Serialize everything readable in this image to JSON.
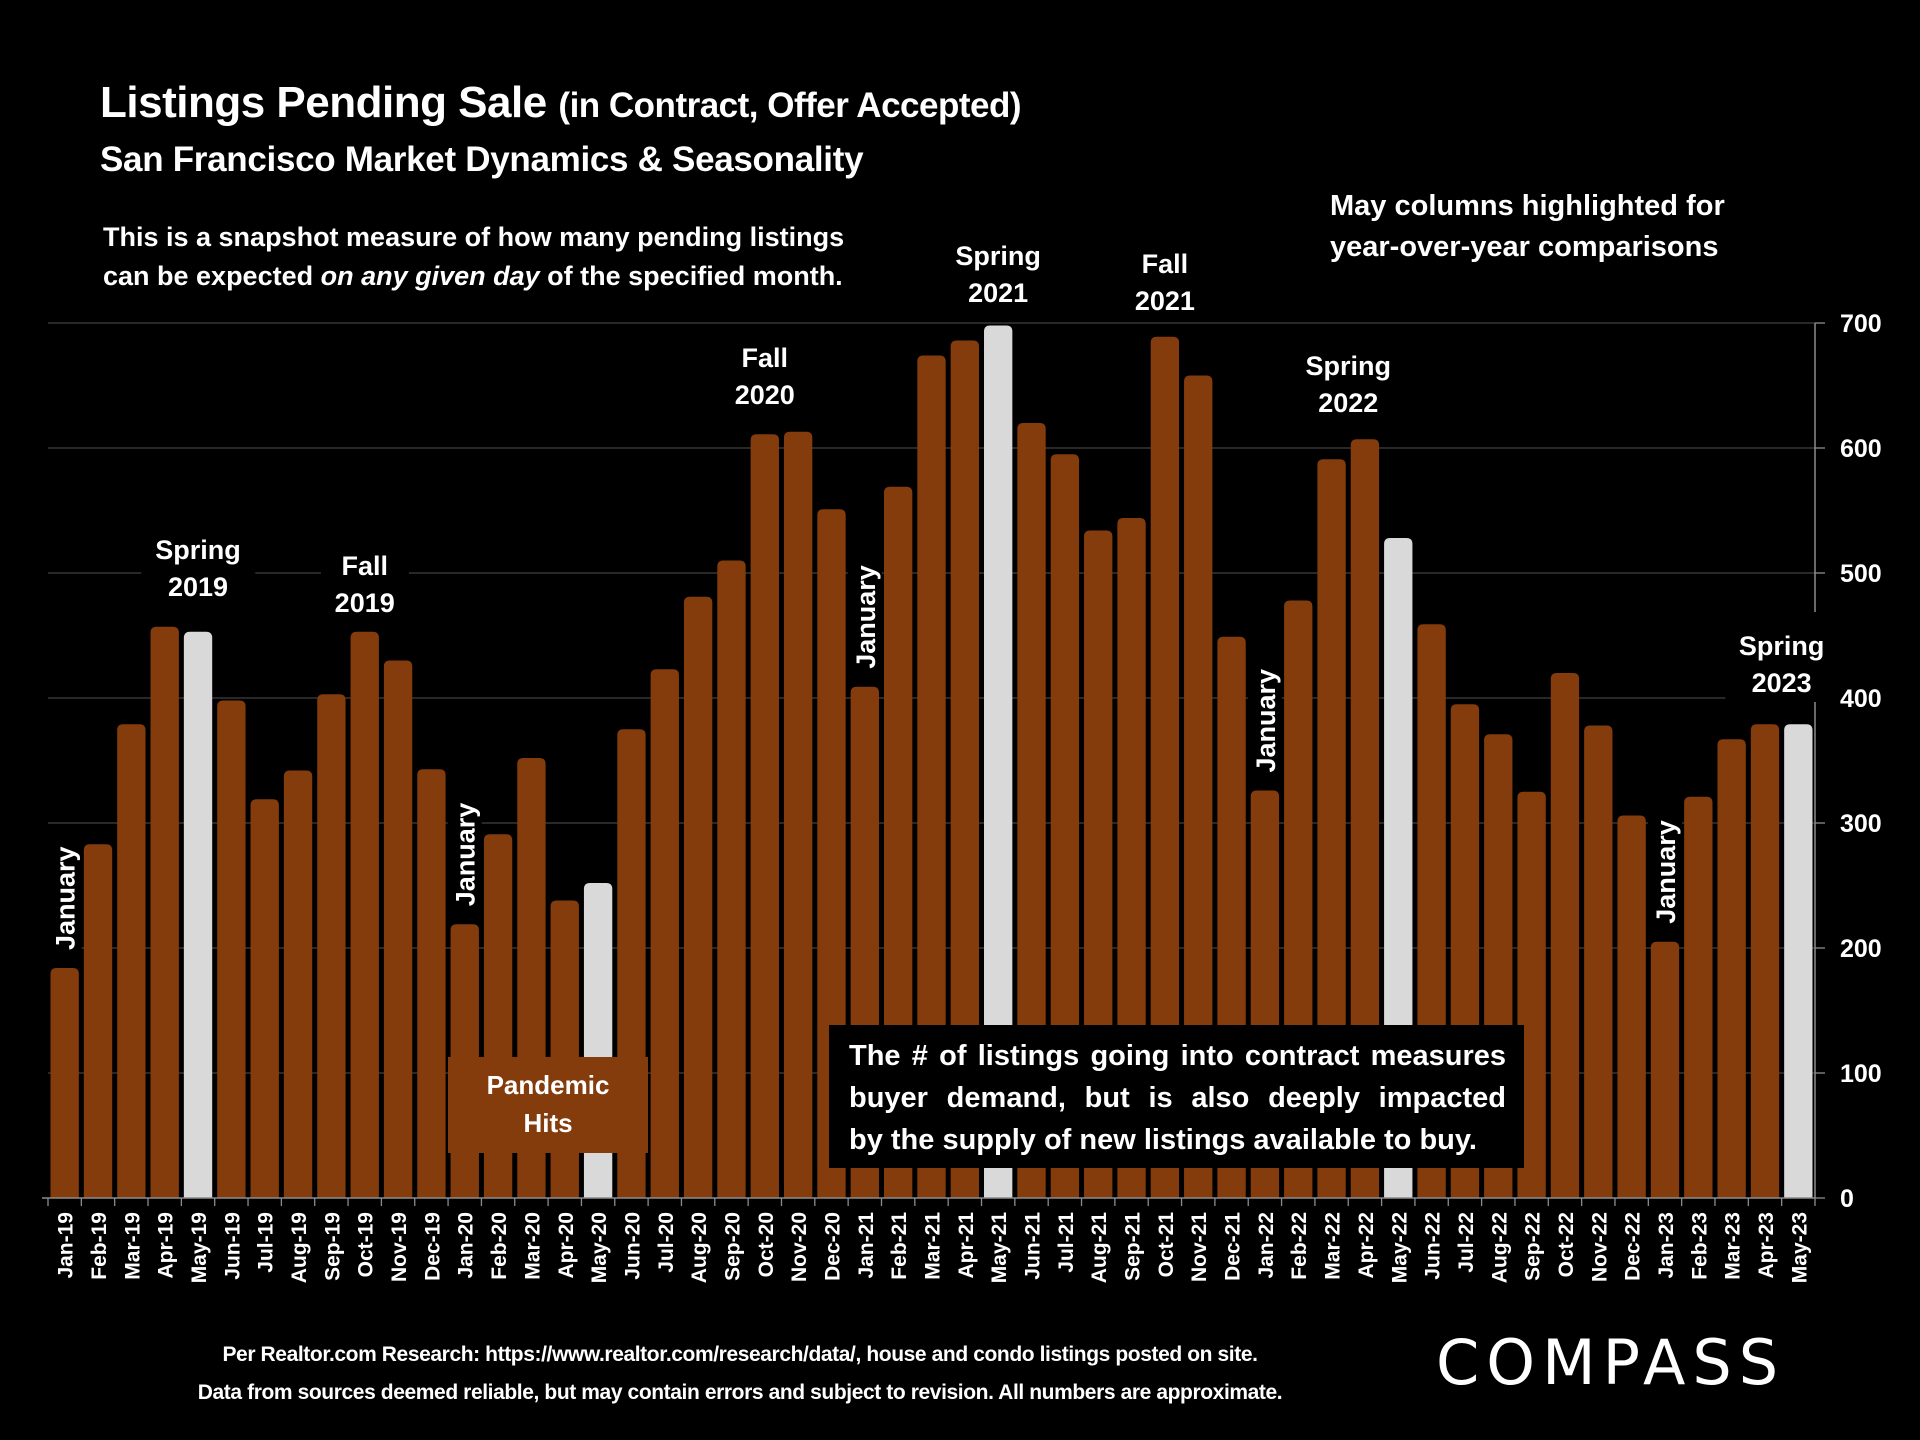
{
  "header": {
    "title_main": "Listings Pending Sale",
    "title_paren": "(in Contract, Offer Accepted)",
    "subtitle": "San Francisco Market Dynamics & Seasonality",
    "note_line1": "This is a snapshot measure of how many pending listings",
    "note_line2_pre": "can be expected ",
    "note_line2_em": "on any given day",
    "note_line2_post": " of the specified month.",
    "may_note_line1": "May columns highlighted for",
    "may_note_line2": "year-over-year comparisons"
  },
  "annotations": {
    "season_labels": [
      {
        "line1": "Spring",
        "line2": "2019",
        "month": "May-19"
      },
      {
        "line1": "Fall",
        "line2": "2019",
        "month": "Oct-19"
      },
      {
        "line1": "Fall",
        "line2": "2020",
        "month": "Oct-20"
      },
      {
        "line1": "Spring",
        "line2": "2021",
        "month": "May-21"
      },
      {
        "line1": "Fall",
        "line2": "2021",
        "month": "Oct-21"
      },
      {
        "line1": "Spring",
        "line2": "2022",
        "month": "Mar-22"
      },
      {
        "line1": "Spring",
        "line2": "2023",
        "month": "Apr-23"
      }
    ],
    "january_label": "January",
    "january_months": [
      "Jan-19",
      "Jan-20",
      "Jan-21",
      "Jan-22",
      "Jan-23"
    ],
    "pandemic_line1": "Pandemic",
    "pandemic_line2": "Hits",
    "callout_line1": "The # of listings going into contract measures",
    "callout_line2": "buyer demand, but is also deeply impacted",
    "callout_line3": "by the supply of new listings available to buy."
  },
  "footer": {
    "source_line": "Per Realtor.com Research:  https://www.realtor.com/research/data/, house and condo listings posted on site.",
    "disclaimer_line": "Data from sources deemed reliable, but may contain errors and subject to revision. All numbers are approximate.",
    "logo_text": "COMPASS"
  },
  "colors": {
    "bar": "#843C0C",
    "highlight": "#D9D9D9",
    "background": "#000000",
    "gridline": "#404040",
    "text": "#FFFFFF"
  },
  "chart_data": {
    "type": "bar",
    "title": "Listings Pending Sale (in Contract, Offer Accepted)",
    "subtitle": "San Francisco Market Dynamics & Seasonality",
    "xlabel": "",
    "ylabel": "",
    "ylim": [
      0,
      700
    ],
    "yticks": [
      0,
      100,
      200,
      300,
      400,
      500,
      600,
      700
    ],
    "y_axis_side": "right",
    "grid": true,
    "highlight_rule": "May columns highlighted",
    "categories": [
      "Jan-19",
      "Feb-19",
      "Mar-19",
      "Apr-19",
      "May-19",
      "Jun-19",
      "Jul-19",
      "Aug-19",
      "Sep-19",
      "Oct-19",
      "Nov-19",
      "Dec-19",
      "Jan-20",
      "Feb-20",
      "Mar-20",
      "Apr-20",
      "May-20",
      "Jun-20",
      "Jul-20",
      "Aug-20",
      "Sep-20",
      "Oct-20",
      "Nov-20",
      "Dec-20",
      "Jan-21",
      "Feb-21",
      "Mar-21",
      "Apr-21",
      "May-21",
      "Jun-21",
      "Jul-21",
      "Aug-21",
      "Sep-21",
      "Oct-21",
      "Nov-21",
      "Dec-21",
      "Jan-22",
      "Feb-22",
      "Mar-22",
      "Apr-22",
      "May-22",
      "Jun-22",
      "Jul-22",
      "Aug-22",
      "Sep-22",
      "Oct-22",
      "Nov-22",
      "Dec-22",
      "Jan-23",
      "Feb-23",
      "Mar-23",
      "Apr-23",
      "May-23"
    ],
    "values": [
      184,
      283,
      379,
      457,
      453,
      398,
      319,
      342,
      403,
      453,
      430,
      343,
      219,
      291,
      352,
      238,
      252,
      375,
      423,
      481,
      510,
      611,
      613,
      551,
      409,
      569,
      674,
      686,
      698,
      620,
      595,
      534,
      544,
      689,
      658,
      449,
      326,
      478,
      591,
      607,
      528,
      459,
      395,
      371,
      325,
      420,
      378,
      306,
      205,
      321,
      367,
      379,
      379
    ]
  }
}
